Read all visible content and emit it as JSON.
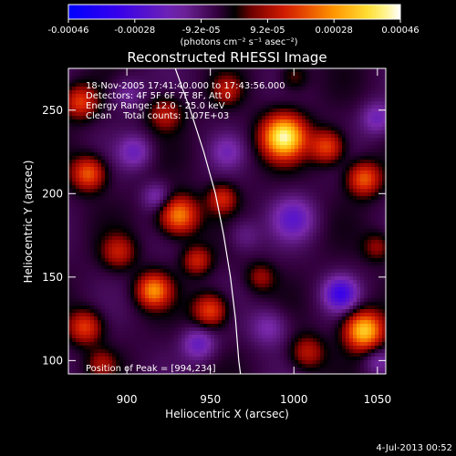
{
  "chart_data": {
    "type": "heatmap",
    "title": "Reconstructed RHESSI Image",
    "xlabel": "Heliocentric X (arcsec)",
    "ylabel": "Heliocentric Y (arcsec)",
    "xlim": [
      865,
      1055
    ],
    "ylim": [
      92,
      275
    ],
    "x_ticks": [
      900,
      950,
      1000,
      1050
    ],
    "y_ticks": [
      100,
      150,
      200,
      250
    ],
    "annotations": [
      "18-Nov-2005 17:41:40.000 to 17:43:56.000",
      "Detectors: 4F 5F 6F 7F 8F, Att 0",
      "Energy Range: 12.0 - 25.0 keV",
      "Clean    Total counts: 1.07E+03"
    ],
    "peak_label": "Position of Peak = [994,234]",
    "peak": [
      994,
      234
    ],
    "colorbar": {
      "ticks": [
        "-0.00046",
        "-0.00028",
        "-9.2e-05",
        "9.2e-05",
        "0.00028",
        "0.00046"
      ],
      "range": [
        -0.00046,
        0.00046
      ],
      "units_label": "(photons cm⁻² s⁻¹ asec⁻²)"
    },
    "limb_curve": [
      [
        929,
        275
      ],
      [
        938,
        250
      ],
      [
        946,
        225
      ],
      [
        953,
        200
      ],
      [
        958,
        175
      ],
      [
        962,
        150
      ],
      [
        965,
        125
      ],
      [
        967,
        100
      ],
      [
        968,
        92
      ]
    ],
    "sources": [
      {
        "x": 994,
        "y": 234,
        "v": 0.00046,
        "w": 9
      },
      {
        "x": 1042,
        "y": 118,
        "v": 0.0004,
        "w": 8
      },
      {
        "x": 1020,
        "y": 228,
        "v": 0.00024,
        "w": 7
      },
      {
        "x": 1042,
        "y": 209,
        "v": 0.00026,
        "w": 7
      },
      {
        "x": 931,
        "y": 187,
        "v": 0.00032,
        "w": 8
      },
      {
        "x": 916,
        "y": 142,
        "v": 0.0003,
        "w": 7
      },
      {
        "x": 877,
        "y": 212,
        "v": 0.00026,
        "w": 7
      },
      {
        "x": 872,
        "y": 255,
        "v": 0.00022,
        "w": 7
      },
      {
        "x": 875,
        "y": 120,
        "v": 0.00022,
        "w": 7
      },
      {
        "x": 950,
        "y": 130,
        "v": 0.00024,
        "w": 7
      },
      {
        "x": 942,
        "y": 160,
        "v": 0.00018,
        "w": 6
      },
      {
        "x": 957,
        "y": 197,
        "v": 0.00018,
        "w": 6
      },
      {
        "x": 895,
        "y": 165,
        "v": 0.00016,
        "w": 7
      },
      {
        "x": 980,
        "y": 150,
        "v": 0.00012,
        "w": 6
      },
      {
        "x": 923,
        "y": 248,
        "v": 0.00016,
        "w": 7
      },
      {
        "x": 1008,
        "y": 105,
        "v": 0.00016,
        "w": 7
      },
      {
        "x": 1050,
        "y": 168,
        "v": 0.00012,
        "w": 6
      },
      {
        "x": 960,
        "y": 262,
        "v": 0.00014,
        "w": 6
      },
      {
        "x": 1000,
        "y": 270,
        "v": 0.0001,
        "w": 6
      },
      {
        "x": 885,
        "y": 98,
        "v": 0.00012,
        "w": 6
      },
      {
        "x": 1028,
        "y": 140,
        "v": -0.00024,
        "w": 7
      },
      {
        "x": 1000,
        "y": 185,
        "v": -0.00016,
        "w": 9
      },
      {
        "x": 985,
        "y": 120,
        "v": -0.00012,
        "w": 8
      },
      {
        "x": 905,
        "y": 225,
        "v": -0.00014,
        "w": 7
      },
      {
        "x": 918,
        "y": 198,
        "v": -0.00012,
        "w": 6
      },
      {
        "x": 943,
        "y": 110,
        "v": -0.00016,
        "w": 7
      },
      {
        "x": 1050,
        "y": 245,
        "v": -0.00014,
        "w": 7
      },
      {
        "x": 960,
        "y": 225,
        "v": -0.0001,
        "w": 7
      },
      {
        "x": 1050,
        "y": 100,
        "v": -0.0001,
        "w": 6
      },
      {
        "x": 970,
        "y": 175,
        "v": -8e-05,
        "w": 7
      },
      {
        "x": 900,
        "y": 260,
        "v": -0.0001,
        "w": 7
      }
    ]
  },
  "footer": {
    "timestamp": "4-Jul-2013 00:52"
  }
}
